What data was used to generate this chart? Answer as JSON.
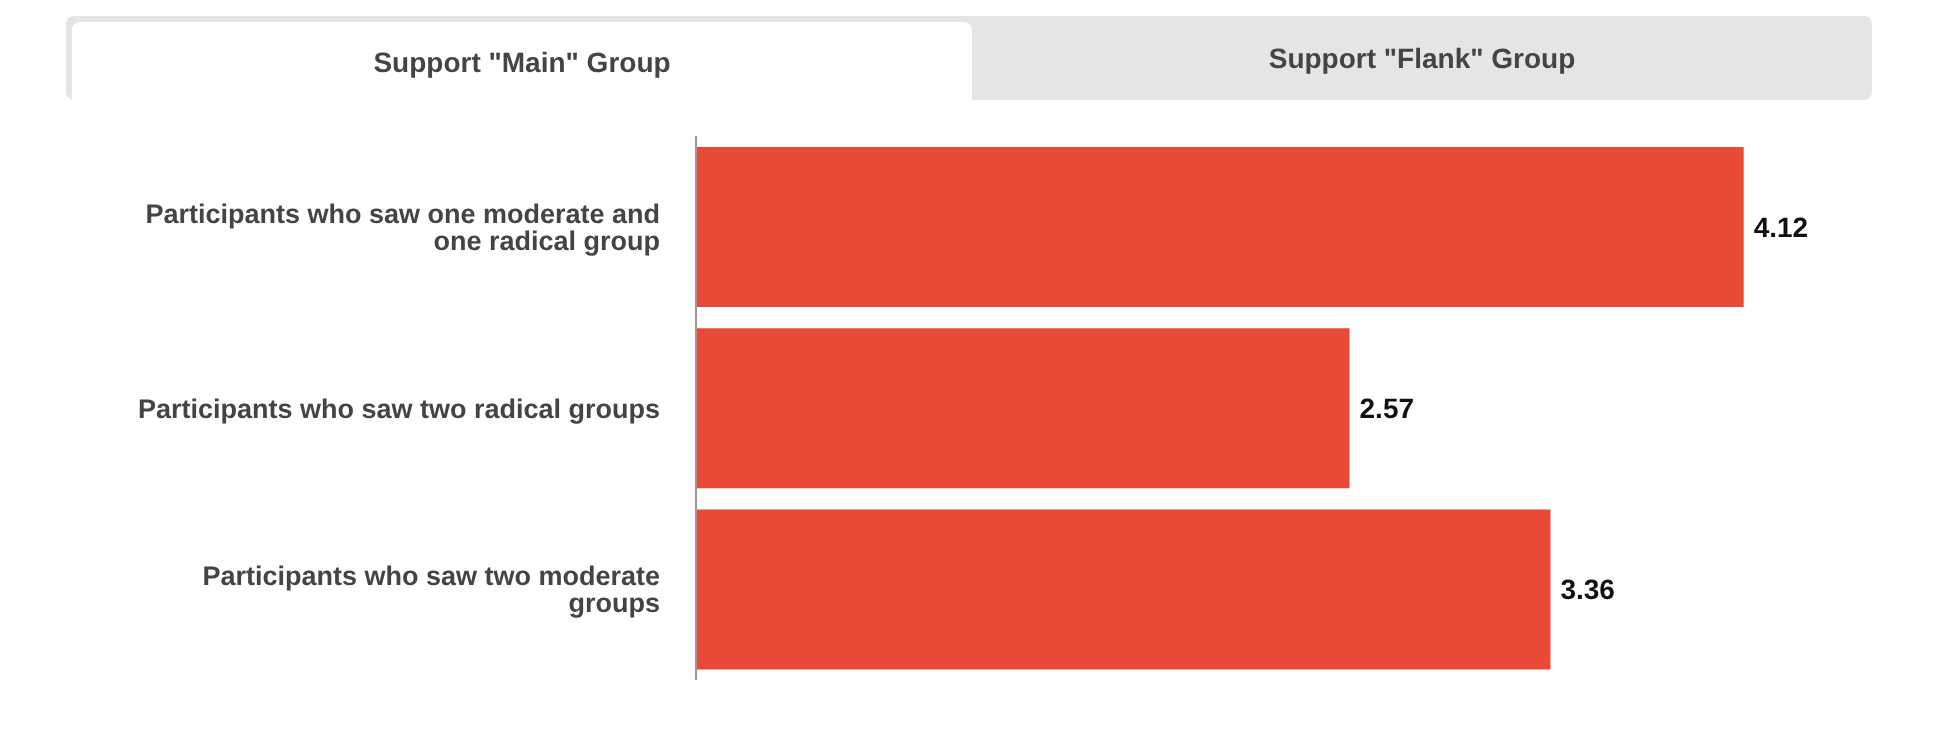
{
  "chart_data": {
    "type": "bar",
    "orientation": "horizontal",
    "categories": [
      "Participants who saw one moderate and one radical group",
      "Participants who saw two radical groups",
      "Participants who saw two moderate groups"
    ],
    "values": [
      4.12,
      2.57,
      3.36
    ],
    "color": "#e84a37",
    "data_labels": true,
    "annotations": [
      "Support \"Main\" Group",
      "Support \"Flank\" Group"
    ]
  }
}
